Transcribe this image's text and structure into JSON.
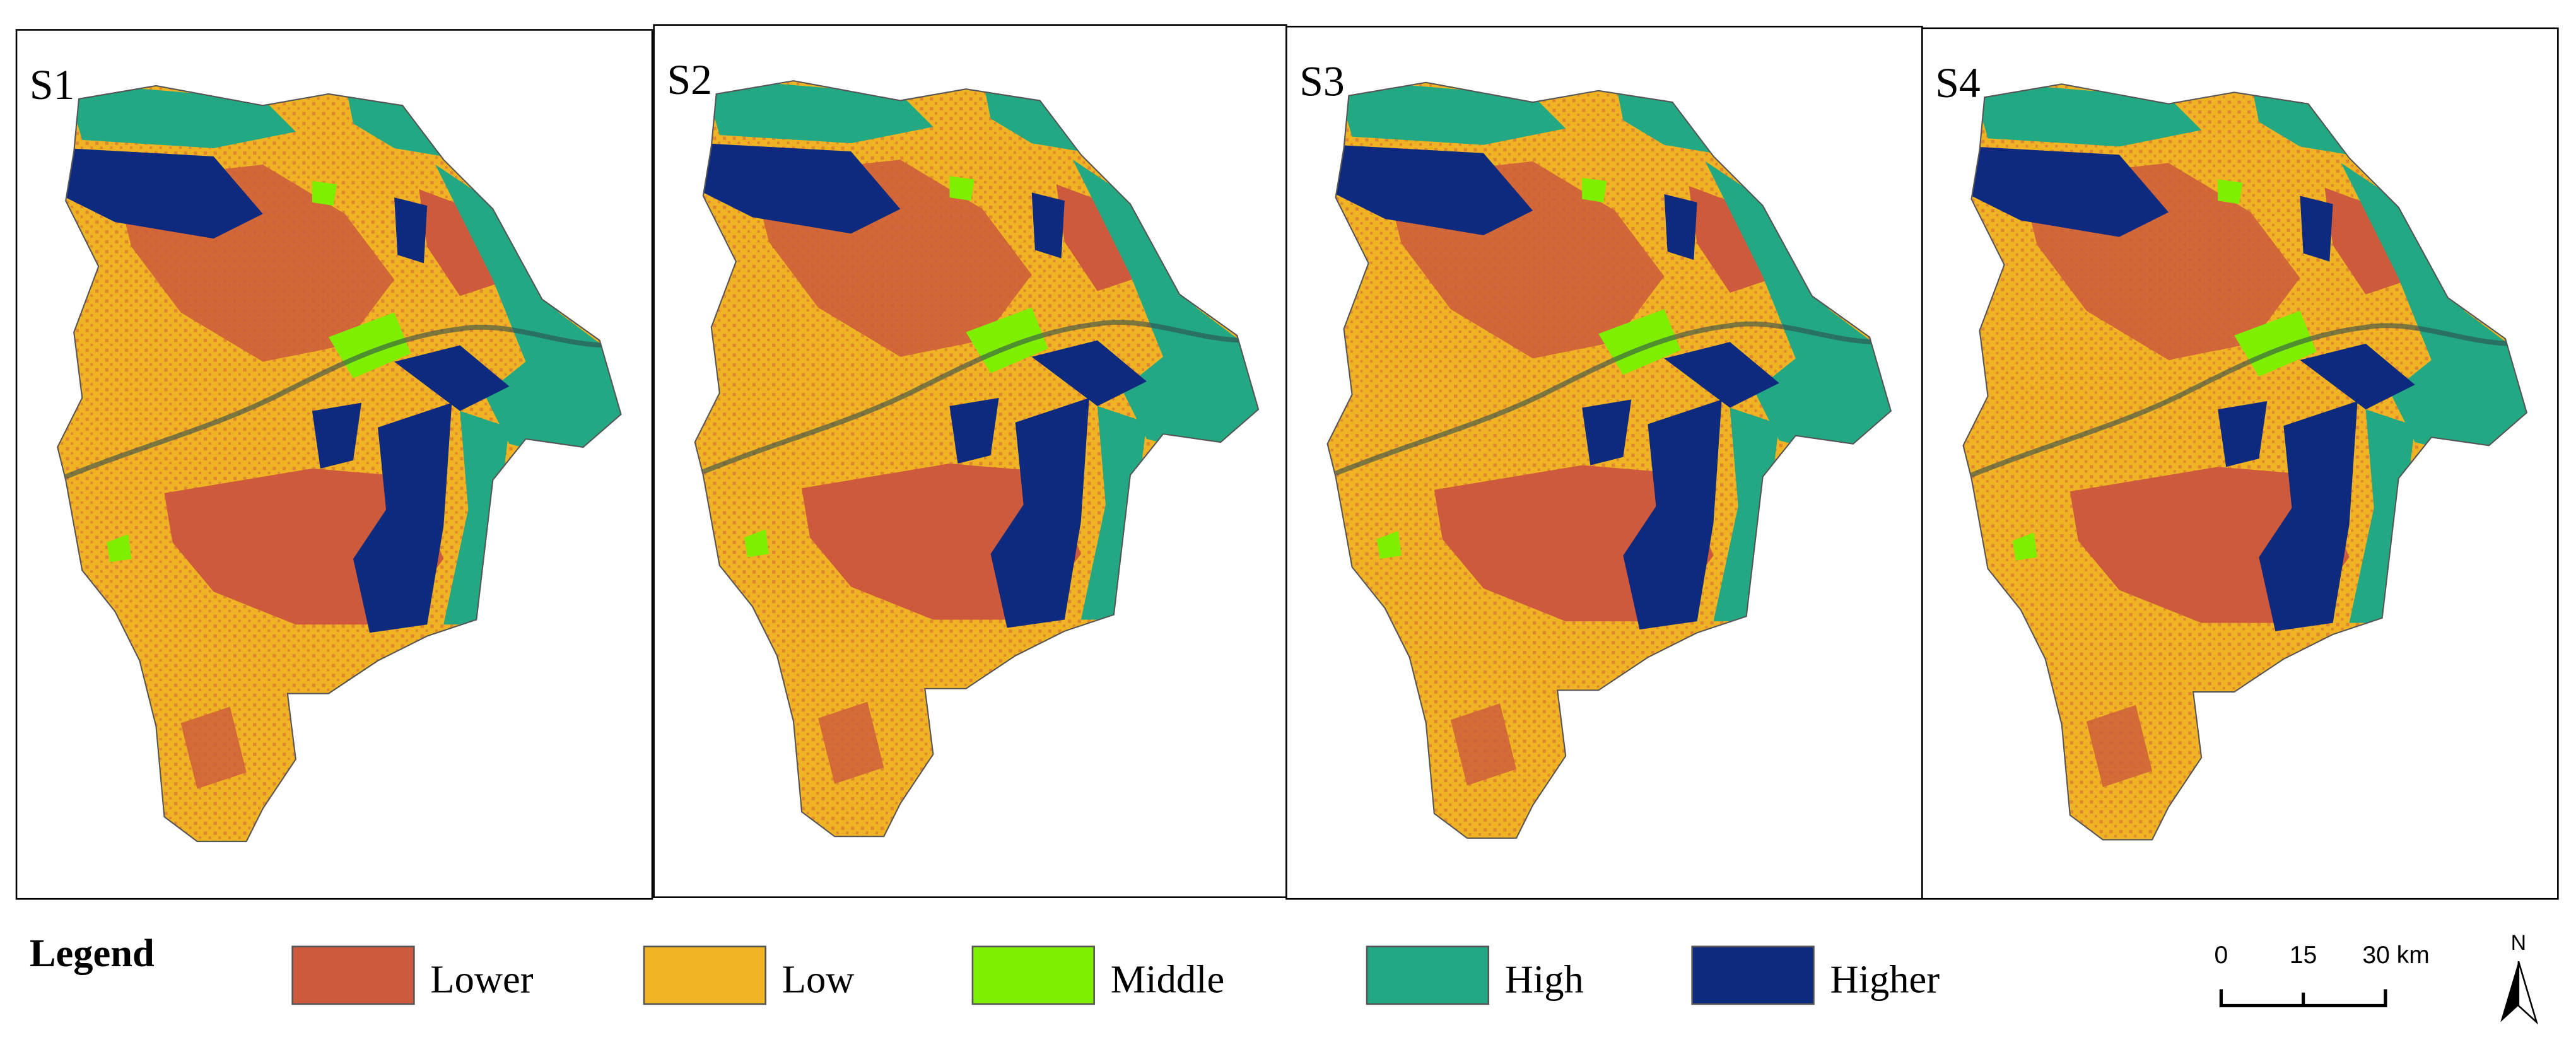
{
  "panels": [
    {
      "label": "S1"
    },
    {
      "label": "S2"
    },
    {
      "label": "S3"
    },
    {
      "label": "S4"
    }
  ],
  "legend": {
    "title": "Legend",
    "items": [
      {
        "label": "Lower",
        "color": "#cd5a3c"
      },
      {
        "label": "Low",
        "color": "#f0b323"
      },
      {
        "label": "Middle",
        "color": "#7fef00"
      },
      {
        "label": "High",
        "color": "#22a883"
      },
      {
        "label": "Higher",
        "color": "#0d2a7f"
      }
    ]
  },
  "scale_bar": {
    "labels": [
      "0",
      "15",
      "30 km"
    ]
  },
  "north_arrow": {
    "label": "N"
  }
}
